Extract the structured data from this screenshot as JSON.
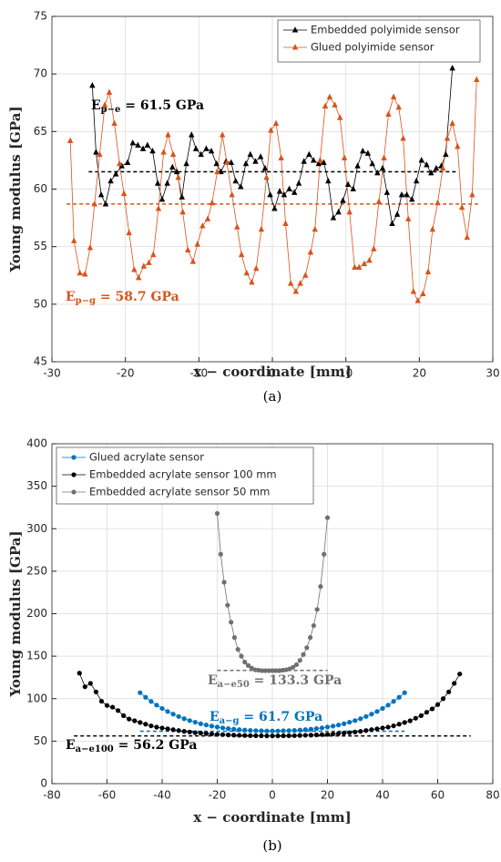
{
  "chart_data": [
    {
      "type": "line",
      "xlabel": "x − coordinate [mm]",
      "ylabel": "Young modulus [GPa]",
      "caption": "(a)",
      "xlim": [
        -30,
        30
      ],
      "xticks": [
        -30,
        -20,
        -10,
        0,
        10,
        20,
        30
      ],
      "ylim": [
        45,
        75
      ],
      "yticks": [
        45,
        50,
        55,
        60,
        65,
        70,
        75
      ],
      "grid": true,
      "legend": "upper right",
      "series": [
        {
          "name": "Embedded polyimide sensor",
          "color": "#000000",
          "marker": "triangle",
          "x": [
            -24.5,
            -24,
            -23.3,
            -22.7,
            -22,
            -21.3,
            -20.5,
            -19.7,
            -19,
            -18.3,
            -17.6,
            -17,
            -16.3,
            -15.6,
            -15,
            -14.3,
            -13.6,
            -13,
            -12.3,
            -11.7,
            -11,
            -10.4,
            -9.7,
            -9,
            -8.3,
            -7.6,
            -7,
            -6.3,
            -5.6,
            -5,
            -4.3,
            -3.6,
            -3,
            -2.3,
            -1.6,
            -1,
            -0.3,
            0.3,
            1,
            1.6,
            2.3,
            3,
            3.6,
            4.3,
            5,
            5.6,
            6.3,
            7,
            7.6,
            8.3,
            9,
            9.6,
            10.3,
            11,
            11.6,
            12.3,
            13,
            13.6,
            14.3,
            15,
            15.6,
            16.3,
            17,
            17.6,
            18.3,
            19,
            19.6,
            20.3,
            21,
            21.6,
            22.3,
            23,
            23.6,
            24.5
          ],
          "values": [
            69,
            63.2,
            59.5,
            58.7,
            60.7,
            61.3,
            62,
            62.3,
            64,
            63.8,
            63.5,
            63.8,
            63.3,
            60.5,
            59.1,
            60.5,
            61.9,
            61.5,
            59.3,
            62.2,
            64.7,
            63.5,
            63,
            63.5,
            63.3,
            62.2,
            61.5,
            62.4,
            62.3,
            60.7,
            60.2,
            62.2,
            63,
            62.4,
            62.8,
            61.8,
            59.5,
            58.3,
            59.8,
            59.5,
            60,
            59.7,
            60.5,
            62.4,
            63,
            62.5,
            62.2,
            62.3,
            60.7,
            57.5,
            58,
            59,
            60.4,
            60,
            62,
            63.3,
            63.1,
            62.2,
            61.4,
            61.8,
            59.7,
            57,
            57.8,
            59.5,
            59.5,
            59.1,
            60.7,
            62.5,
            62.1,
            61.4,
            61.8,
            62,
            63,
            70.5
          ]
        },
        {
          "name": "Glued polyimide sensor",
          "color": "#d95319",
          "marker": "triangle",
          "x": [
            -27.5,
            -27,
            -26.2,
            -25.5,
            -24.8,
            -24.2,
            -23.5,
            -22.8,
            -22.2,
            -21.5,
            -20.8,
            -20.2,
            -19.5,
            -18.8,
            -18.2,
            -17.5,
            -16.8,
            -16.2,
            -15.5,
            -14.8,
            -14.2,
            -13.5,
            -12.8,
            -12.2,
            -11.5,
            -10.8,
            -10.2,
            -9.5,
            -8.8,
            -8.2,
            -7.5,
            -6.8,
            -6.2,
            -5.5,
            -4.8,
            -4.2,
            -3.5,
            -2.8,
            -2.2,
            -1.5,
            -0.8,
            -0.2,
            0.5,
            1.2,
            1.8,
            2.5,
            3.2,
            3.8,
            4.5,
            5.2,
            5.8,
            6.5,
            7.2,
            7.8,
            8.5,
            9.2,
            9.8,
            10.5,
            11.2,
            11.8,
            12.5,
            13.2,
            13.8,
            14.5,
            15.2,
            15.8,
            16.5,
            17.2,
            17.8,
            18.5,
            19.2,
            19.8,
            20.5,
            21.2,
            21.8,
            22.5,
            23.2,
            23.8,
            24.5,
            25.2,
            25.8,
            26.5,
            27.2,
            27.8
          ],
          "values": [
            64.2,
            55.5,
            52.7,
            52.6,
            54.9,
            58.7,
            63,
            67.3,
            68.4,
            65.7,
            62.2,
            59.6,
            56.2,
            53,
            52.3,
            53.3,
            53.6,
            54.3,
            58.3,
            63.2,
            64.7,
            63,
            61,
            58,
            54.7,
            53.7,
            55.2,
            56.8,
            57.4,
            58.8,
            61.5,
            64.7,
            62.3,
            59.5,
            56.7,
            54.3,
            52.7,
            51.9,
            53.1,
            56.5,
            61,
            65.1,
            65.7,
            62.7,
            57,
            51.8,
            51.1,
            51.8,
            52.5,
            54.5,
            56.5,
            62.5,
            67.2,
            68,
            67.3,
            66.2,
            62.7,
            58,
            53.2,
            53.2,
            53.5,
            53.8,
            54.8,
            58.9,
            62.7,
            66.5,
            68,
            67.1,
            64.4,
            57.4,
            51.1,
            50.3,
            50.9,
            52.8,
            56.5,
            58.8,
            61.8,
            64.4,
            65.7,
            63.7,
            58.4,
            55.8,
            59.5,
            69.5
          ]
        }
      ],
      "reference_lines": [
        {
          "value": 61.5,
          "x_range": [
            -25,
            25
          ],
          "color": "#000000"
        },
        {
          "value": 58.7,
          "x_range": [
            -28,
            28
          ],
          "color": "#d95319"
        }
      ],
      "annotations": [
        {
          "parts": [
            "E",
            "p−e",
            " = 61.5 GPa"
          ],
          "color": "#000000"
        },
        {
          "parts": [
            "E",
            "p−g",
            " = 58.7 GPa"
          ],
          "color": "#d95319"
        }
      ]
    },
    {
      "type": "line",
      "xlabel": "x − coordinate [mm]",
      "ylabel": "Young modulus [GPa]",
      "caption": "(b)",
      "xlim": [
        -80,
        80
      ],
      "xticks": [
        -80,
        -60,
        -40,
        -20,
        0,
        20,
        40,
        60,
        80
      ],
      "ylim": [
        0,
        400
      ],
      "yticks": [
        0,
        50,
        100,
        150,
        200,
        250,
        300,
        350,
        400
      ],
      "grid": true,
      "legend": "upper left",
      "series": [
        {
          "name": "Glued acrylate sensor",
          "color": "#0072bd",
          "marker": "circle",
          "x": [
            -48,
            -46,
            -44,
            -42,
            -40,
            -38,
            -36,
            -34,
            -32,
            -30,
            -28,
            -26,
            -24,
            -22,
            -20,
            -18,
            -16,
            -14,
            -12,
            -10,
            -8,
            -6,
            -4,
            -2,
            0,
            2,
            4,
            6,
            8,
            10,
            12,
            14,
            16,
            18,
            20,
            22,
            24,
            26,
            28,
            30,
            32,
            34,
            36,
            38,
            40,
            42,
            44,
            46,
            48
          ],
          "values": [
            107,
            101.6,
            96.8,
            92.4,
            88.5,
            84.9,
            81.8,
            79,
            76.4,
            74.2,
            72.3,
            70.5,
            69,
            67.7,
            66.6,
            65.6,
            64.8,
            64.1,
            63.5,
            63,
            62.6,
            62.4,
            62.2,
            62,
            62,
            62,
            62.2,
            62.4,
            62.6,
            63,
            63.5,
            64.1,
            64.8,
            65.6,
            66.6,
            67.7,
            69,
            70.5,
            72.3,
            74.2,
            76.4,
            79,
            81.8,
            84.9,
            88.5,
            92.4,
            96.8,
            101.6,
            107
          ]
        },
        {
          "name": "Embedded acrylate sensor 100 mm",
          "color": "#000000",
          "marker": "circle",
          "x": [
            -70,
            -68,
            -66,
            -64,
            -62,
            -60,
            -58,
            -56,
            -54,
            -52,
            -50,
            -48,
            -46,
            -44,
            -42,
            -40,
            -38,
            -36,
            -34,
            -32,
            -30,
            -28,
            -26,
            -24,
            -22,
            -20,
            -18,
            -16,
            -14,
            -12,
            -10,
            -8,
            -6,
            -4,
            -2,
            0,
            2,
            4,
            6,
            8,
            10,
            12,
            14,
            16,
            18,
            20,
            22,
            24,
            26,
            28,
            30,
            32,
            34,
            36,
            38,
            40,
            42,
            44,
            46,
            48,
            50,
            52,
            54,
            56,
            58,
            60,
            62,
            64,
            66,
            68
          ],
          "values": [
            130,
            114,
            118,
            108,
            97,
            92,
            90,
            86,
            80,
            76,
            74,
            72,
            70,
            68,
            66.5,
            65.5,
            64.5,
            63.5,
            62.5,
            61.5,
            60.8,
            60,
            59.5,
            59,
            58.5,
            58,
            57.7,
            57.4,
            57.1,
            56.9,
            56.7,
            56.5,
            56.4,
            56.3,
            56.2,
            56.2,
            56.2,
            56.3,
            56.4,
            56.5,
            56.7,
            56.9,
            57.1,
            57.4,
            57.7,
            58,
            58.5,
            59,
            59.5,
            60,
            60.8,
            61.5,
            62.5,
            63.5,
            64.5,
            65.5,
            66.5,
            68,
            70,
            72,
            74,
            77,
            80,
            84,
            88,
            93,
            100,
            108,
            118,
            129
          ]
        },
        {
          "name": "Embedded acrylate sensor 50 mm",
          "color": "#707070",
          "marker": "circle",
          "x": [
            -20,
            -18.75,
            -17.5,
            -16.25,
            -15,
            -13.75,
            -12.5,
            -11.25,
            -10,
            -8.75,
            -7.5,
            -6.25,
            -5,
            -3.75,
            -2.5,
            -1.25,
            0,
            1.25,
            2.5,
            3.75,
            5,
            6.25,
            7.5,
            8.75,
            10,
            11.25,
            12.5,
            13.75,
            15,
            16.25,
            17.5,
            18.75,
            20
          ],
          "values": [
            318,
            270,
            237,
            210,
            190,
            172,
            158,
            150,
            143,
            139,
            136,
            134,
            133.5,
            133,
            133,
            133,
            133,
            133,
            133,
            133.5,
            134,
            135,
            137,
            140,
            145,
            152,
            160,
            172,
            186,
            205,
            232,
            270,
            313
          ]
        }
      ],
      "reference_lines": [
        {
          "value": 133.3,
          "x_range": [
            -20,
            20
          ],
          "color": "#707070"
        },
        {
          "value": 61.7,
          "x_range": [
            -48,
            48
          ],
          "color": "#0072bd"
        },
        {
          "value": 56.2,
          "x_range": [
            -72,
            72
          ],
          "color": "#000000"
        }
      ],
      "annotations": [
        {
          "parts": [
            "E",
            "a−e50",
            " = 133.3 GPa"
          ],
          "color": "#707070"
        },
        {
          "parts": [
            "E",
            "a−g",
            " = 61.7 GPa"
          ],
          "color": "#0072bd"
        },
        {
          "parts": [
            "E",
            "a−e100",
            " = 56.2 GPa"
          ],
          "color": "#000000"
        }
      ]
    }
  ]
}
